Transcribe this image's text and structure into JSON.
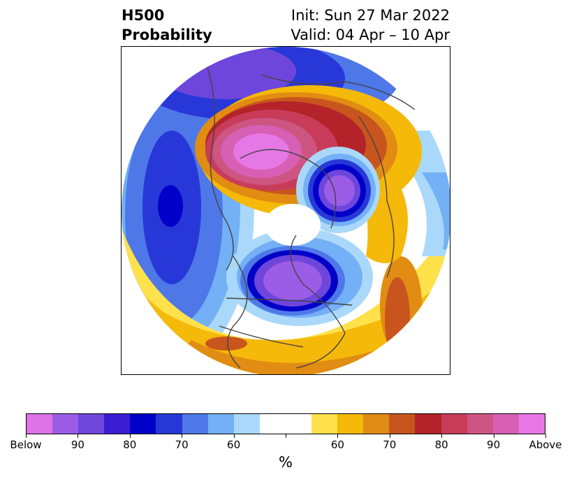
{
  "title": {
    "left_line1": "H500",
    "left_line2": "Probability",
    "right_line1": "Init: Sun 27 Mar 2022",
    "right_line2": "Valid: 04 Apr – 10 Apr"
  },
  "colorbar": {
    "colors": [
      "#dc73e6",
      "#9b5ce6",
      "#6e46dc",
      "#3c1ed2",
      "#0000c8",
      "#2838d8",
      "#4e78e8",
      "#73b0f5",
      "#aad8fa",
      "#ffffff",
      "#ffffff",
      "#ffe14b",
      "#f5b90a",
      "#e18c12",
      "#c8551e",
      "#b4232a",
      "#c83c5a",
      "#cd5582",
      "#d75fb4",
      "#e678e6"
    ],
    "tick_labels": [
      "Below",
      "90",
      "80",
      "70",
      "60",
      "",
      "60",
      "70",
      "80",
      "90",
      "Above"
    ],
    "unit_label": "%"
  },
  "map": {
    "palette": {
      "below_strong": "#9b5ce6",
      "below_mid": "#6e46dc",
      "below_dark": "#0000c8",
      "below_blue": "#2838d8",
      "below_light": "#4e78e8",
      "below_lighter": "#73b0f5",
      "below_lightest": "#aad8fa",
      "above_light": "#ffe14b",
      "above_yellow": "#f5b90a",
      "above_orange": "#e18c12",
      "above_dark": "#c8551e",
      "above_red": "#b4232a",
      "above_rose": "#c83c5a",
      "above_pink": "#d75fb4",
      "above_magenta": "#e678e6",
      "coast": "#444444"
    }
  }
}
